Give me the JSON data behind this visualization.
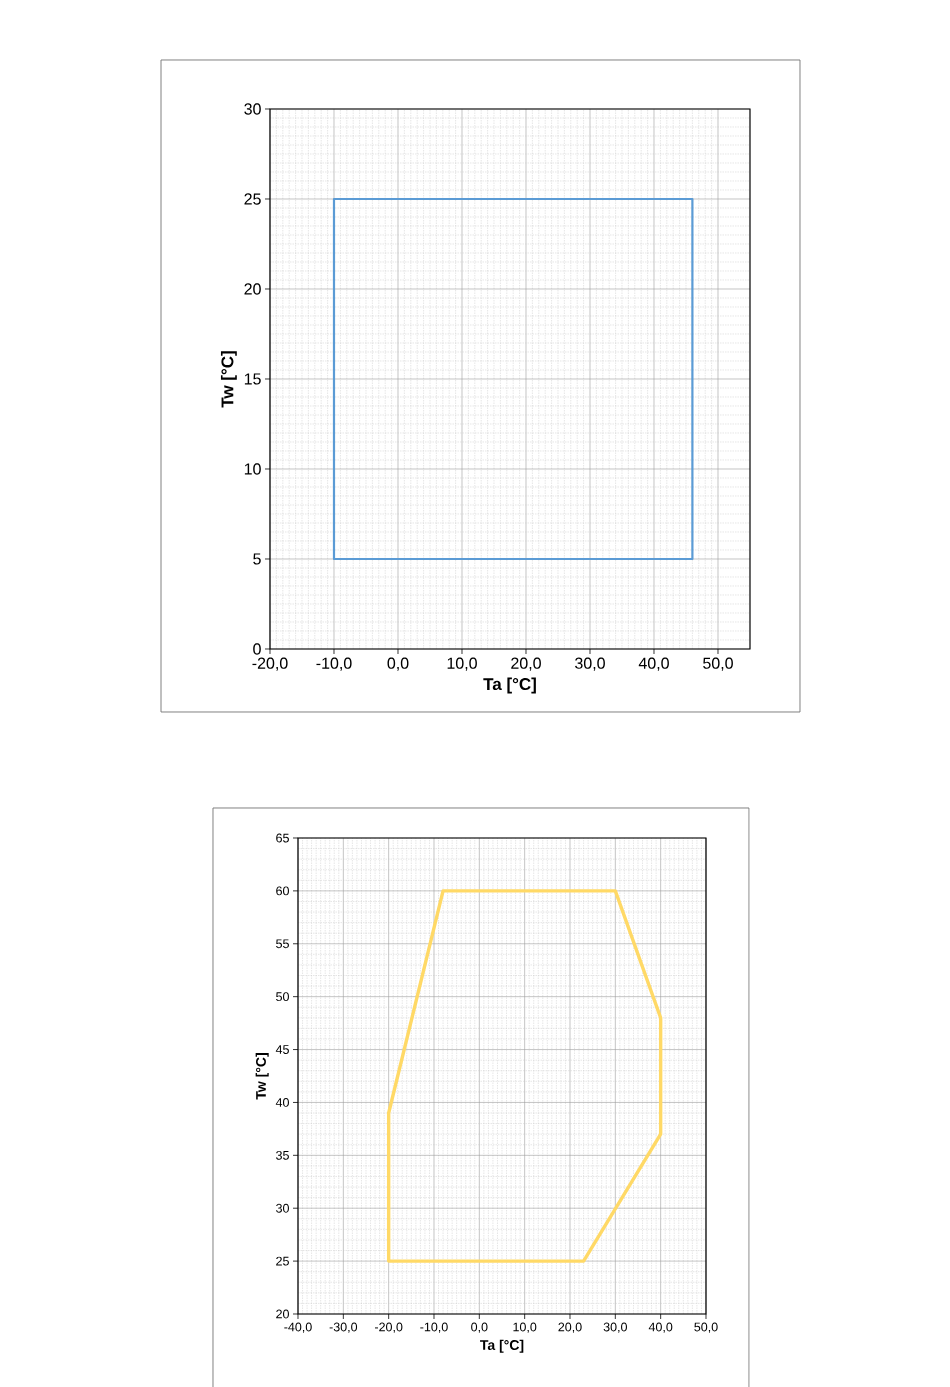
{
  "chart_data": [
    {
      "type": "line",
      "xlabel": "Ta [°C]",
      "ylabel": "Tw [°C]",
      "series": [
        {
          "color": "#5b9bd5",
          "x": [
            -10,
            -10,
            46,
            46,
            -10,
            -10
          ],
          "values": [
            5,
            25,
            25,
            5,
            5,
            25
          ]
        }
      ],
      "xlim": [
        -20,
        55
      ],
      "ylim": [
        0,
        30
      ],
      "xticks": [
        {
          "value": -20,
          "label": "-20,0"
        },
        {
          "value": -10,
          "label": "-10,0"
        },
        {
          "value": 0,
          "label": "0,0"
        },
        {
          "value": 10,
          "label": "10,0"
        },
        {
          "value": 20,
          "label": "20,0"
        },
        {
          "value": 30,
          "label": "30,0"
        },
        {
          "value": 40,
          "label": "40,0"
        },
        {
          "value": 50,
          "label": "50,0"
        }
      ],
      "yticks": [
        0,
        5,
        10,
        15,
        20,
        25,
        30
      ],
      "grid": true
    },
    {
      "type": "line",
      "xlabel": "Ta [°C]",
      "ylabel": "Tw [°C]",
      "series": [
        {
          "color": "#ffd966",
          "x": [
            -20,
            -20,
            -8,
            30,
            40,
            40,
            23,
            -20,
            -20
          ],
          "values": [
            25,
            39,
            60,
            60,
            48,
            37,
            25,
            25,
            39
          ]
        }
      ],
      "xlim": [
        -40,
        50
      ],
      "ylim": [
        20,
        65
      ],
      "xticks": [
        {
          "value": -40,
          "label": "-40,0"
        },
        {
          "value": -30,
          "label": "-30,0"
        },
        {
          "value": -20,
          "label": "-20,0"
        },
        {
          "value": -10,
          "label": "-10,0"
        },
        {
          "value": 0,
          "label": "0,0"
        },
        {
          "value": 10,
          "label": "10,0"
        },
        {
          "value": 20,
          "label": "20,0"
        },
        {
          "value": 30,
          "label": "30,0"
        },
        {
          "value": 40,
          "label": "40,0"
        },
        {
          "value": 50,
          "label": "50,0"
        }
      ],
      "yticks": [
        20,
        25,
        30,
        35,
        40,
        45,
        50,
        55,
        60,
        65
      ],
      "grid": true
    }
  ]
}
